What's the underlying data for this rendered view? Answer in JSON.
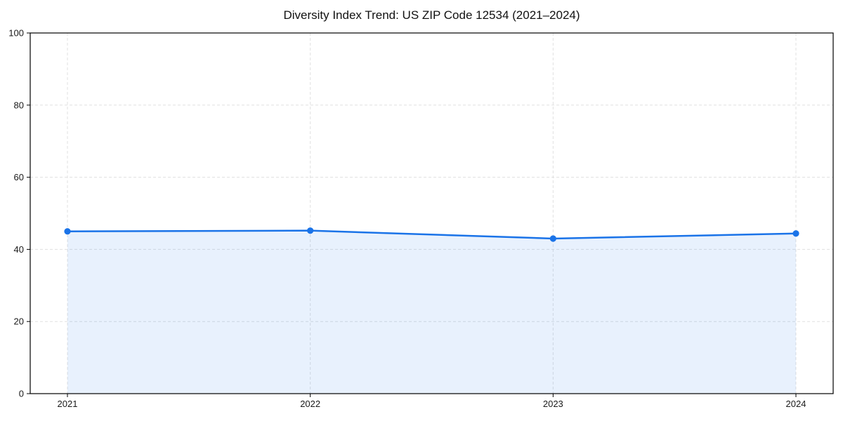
{
  "chart_data": {
    "type": "area",
    "title": "Diversity Index Trend: US ZIP Code 12534 (2021–2024)",
    "x": [
      "2021",
      "2022",
      "2023",
      "2024"
    ],
    "series": [
      {
        "name": "Diversity Index",
        "values": [
          45.0,
          45.2,
          43.0,
          44.4
        ]
      }
    ],
    "xlabel": "",
    "ylabel": "",
    "ylim": [
      0,
      100
    ],
    "yticks": [
      0,
      20,
      40,
      60,
      80,
      100
    ],
    "grid": true,
    "grid_style": "dashed",
    "legend_position": "none",
    "line_color": "#1a73e8",
    "marker": "circle",
    "marker_color": "#1a73e8",
    "fill_color": "rgba(26,115,232,0.10)",
    "grid_color": "#e0e0e0",
    "axis_color": "#000000",
    "background_color": "#ffffff"
  }
}
